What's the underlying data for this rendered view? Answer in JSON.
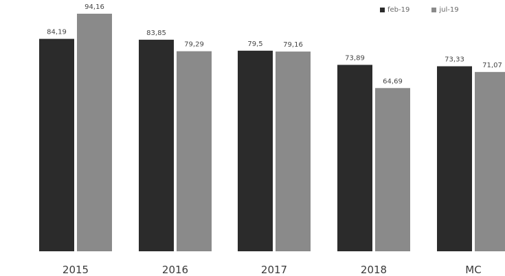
{
  "chart_data": {
    "type": "bar",
    "categories": [
      "2015",
      "2016",
      "2017",
      "2018",
      "MC"
    ],
    "series": [
      {
        "name": "feb-19",
        "values": [
          84.19,
          83.85,
          79.5,
          73.89,
          73.33
        ],
        "labels": [
          "84,19",
          "83,85",
          "79,5",
          "73,89",
          "73,33"
        ],
        "color": "#2b2b2b"
      },
      {
        "name": "jul-19",
        "values": [
          94.16,
          79.29,
          79.16,
          64.69,
          71.07
        ],
        "labels": [
          "94,16",
          "79,29",
          "79,16",
          "64,69",
          "71,07"
        ],
        "color": "#8a8a8a"
      }
    ],
    "legend_position": "top-right",
    "grid": false,
    "ylim": [
      0,
      100
    ]
  }
}
